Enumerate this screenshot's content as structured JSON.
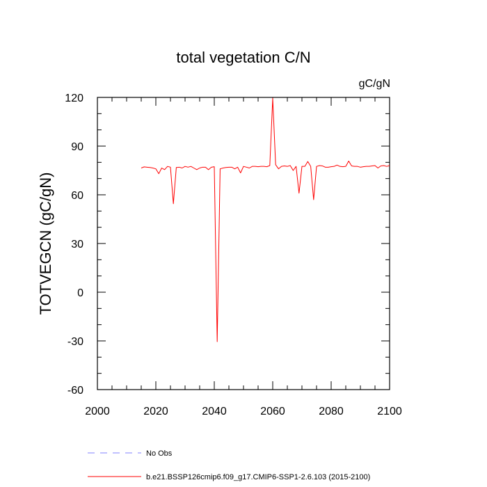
{
  "chart_data": {
    "type": "line",
    "title": "total vegetation C/N",
    "units": "gC/gN",
    "ylabel": "TOTVEGCN  (gC/gN)",
    "xlabel": "",
    "xlim": [
      2000,
      2100
    ],
    "ylim": [
      -60,
      120
    ],
    "xticks": [
      "2000",
      "2020",
      "2040",
      "2060",
      "2080",
      "2100"
    ],
    "yticks": [
      "120",
      "90",
      "60",
      "30",
      "0",
      "-30",
      "-60"
    ],
    "grid": false,
    "legend_position": "bottom-left",
    "series": [
      {
        "name": "No Obs",
        "color": "#8080ff",
        "dash": "dashed",
        "x": [],
        "y": []
      },
      {
        "name": "b.e21.BSSP126cmip6.f09_g17.CMIP6-SSP1-2.6.103 (2015-2100)",
        "color": "#ff0000",
        "dash": "solid",
        "x": [
          2015,
          2016,
          2017,
          2018,
          2019,
          2020,
          2021,
          2022,
          2023,
          2024,
          2025,
          2026,
          2027,
          2028,
          2029,
          2030,
          2031,
          2032,
          2033,
          2034,
          2035,
          2036,
          2037,
          2038,
          2039,
          2040,
          2041,
          2042,
          2043,
          2044,
          2045,
          2046,
          2047,
          2048,
          2049,
          2050,
          2051,
          2052,
          2053,
          2054,
          2055,
          2056,
          2057,
          2058,
          2059,
          2060,
          2061,
          2062,
          2063,
          2064,
          2065,
          2066,
          2067,
          2068,
          2069,
          2070,
          2071,
          2072,
          2073,
          2074,
          2075,
          2076,
          2077,
          2078,
          2079,
          2080,
          2081,
          2082,
          2083,
          2084,
          2085,
          2086,
          2087,
          2088,
          2089,
          2090,
          2091,
          2092,
          2093,
          2094,
          2095,
          2096,
          2097,
          2098,
          2099,
          2100
        ],
        "y": [
          76.5,
          77.2,
          77,
          76.8,
          76.5,
          76,
          73,
          76.5,
          75.5,
          77.5,
          77,
          54.5,
          76.8,
          77,
          76.5,
          77.5,
          77,
          77.5,
          76.5,
          75.5,
          76.5,
          77,
          77,
          75.5,
          77,
          77.3,
          -30.5,
          76,
          76.5,
          76.8,
          77,
          77,
          76,
          77,
          73.5,
          77.5,
          77,
          76.5,
          77.5,
          77.5,
          77.3,
          77.5,
          77.5,
          77.3,
          78,
          119.5,
          78.5,
          76,
          77.5,
          77.8,
          77.5,
          78,
          75,
          77.5,
          61,
          77.5,
          77.5,
          80.5,
          77.5,
          57,
          77.5,
          78,
          77.8,
          77,
          77,
          77.3,
          77.5,
          78.3,
          77.5,
          77.3,
          77.5,
          80.8,
          77.8,
          77.5,
          77.5,
          77,
          77.3,
          77.5,
          77.5,
          77.8,
          78,
          76.5,
          77.8,
          78,
          77.5,
          78
        ]
      }
    ]
  }
}
